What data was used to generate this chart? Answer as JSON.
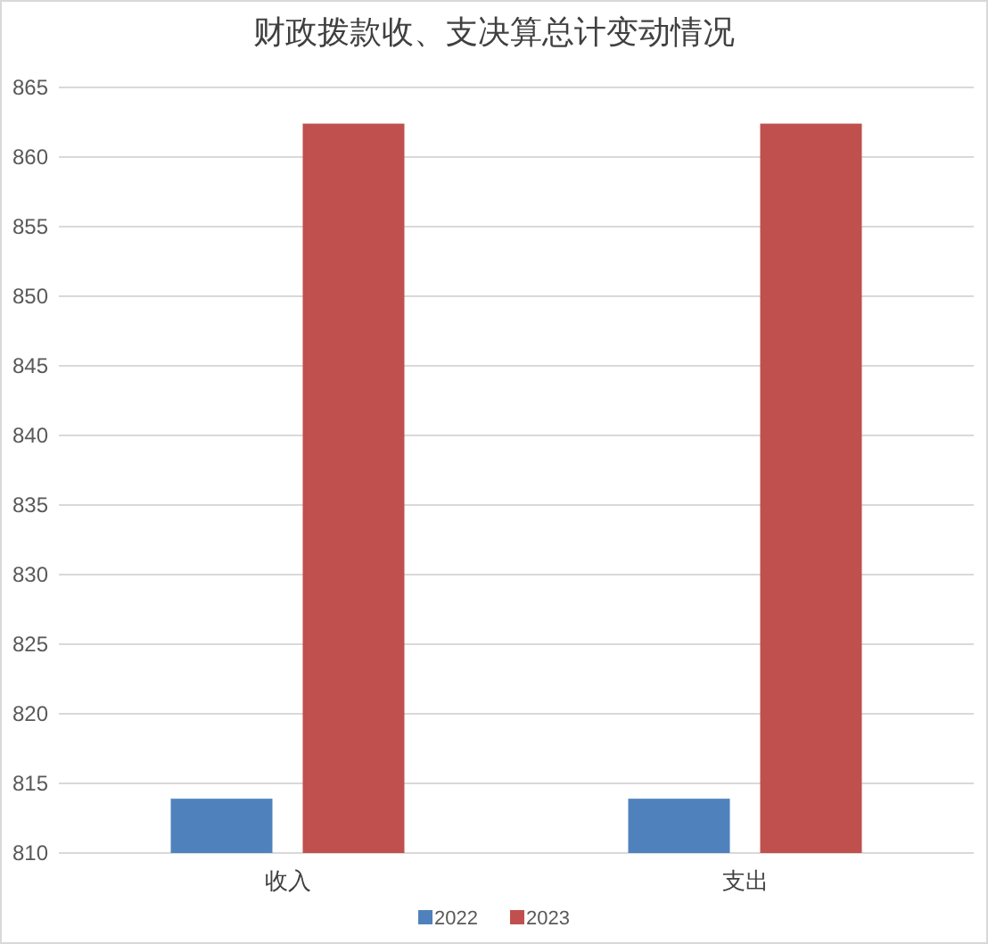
{
  "chart_data": {
    "type": "bar",
    "title": "财政拨款收、支决算总计变动情况",
    "categories": [
      "收入",
      "支出"
    ],
    "series": [
      {
        "name": "2022",
        "color": "#4f81bd",
        "values": [
          813.9,
          813.9
        ]
      },
      {
        "name": "2023",
        "color": "#c0504d",
        "values": [
          862.4,
          862.4
        ]
      }
    ],
    "ylim": [
      810,
      865
    ],
    "yticks": [
      810,
      815,
      820,
      825,
      830,
      835,
      840,
      845,
      850,
      855,
      860,
      865
    ],
    "grid": "y",
    "legend": "bottom"
  }
}
